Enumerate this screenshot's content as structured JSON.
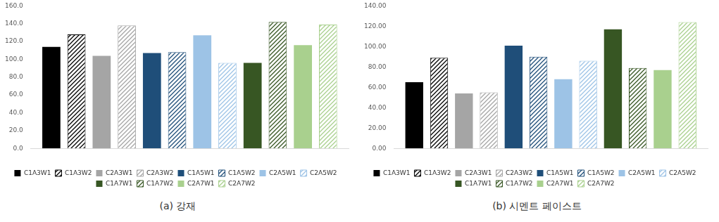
{
  "chart_data": [
    {
      "type": "bar",
      "title": "(a) 강재",
      "categories": [
        null
      ],
      "legend": "bottom",
      "grid": false,
      "ylim": [
        0,
        160
      ],
      "yticks": [
        {
          "value": 0,
          "label": "0.0"
        },
        {
          "value": 20,
          "label": "20.0"
        },
        {
          "value": 40,
          "label": "40.0"
        },
        {
          "value": 60,
          "label": "60.0"
        },
        {
          "value": 80,
          "label": "80.0"
        },
        {
          "value": 100,
          "label": "100.0"
        },
        {
          "value": 120,
          "label": "120.0"
        },
        {
          "value": 140,
          "label": "140.0"
        },
        {
          "value": 160,
          "label": "160.0"
        }
      ],
      "series": [
        {
          "name": "C1A3W1",
          "color": "#000000",
          "line_style": "solid",
          "values": [
            114
          ]
        },
        {
          "name": "C1A3W2",
          "color": "#000000",
          "line_style": "hatched",
          "values": [
            128
          ]
        },
        {
          "name": "C2A3W1",
          "color": "#a5a5a5",
          "line_style": "solid",
          "values": [
            104
          ]
        },
        {
          "name": "C2A3W2",
          "color": "#a5a5a5",
          "line_style": "hatched",
          "values": [
            138
          ]
        },
        {
          "name": "C1A5W1",
          "color": "#1f4e79",
          "line_style": "solid",
          "values": [
            107
          ]
        },
        {
          "name": "C1A5W2",
          "color": "#1f4e79",
          "line_style": "hatched",
          "values": [
            108
          ]
        },
        {
          "name": "C2A5W1",
          "color": "#9dc3e6",
          "line_style": "solid",
          "values": [
            127
          ]
        },
        {
          "name": "C2A5W2",
          "color": "#9dc3e6",
          "line_style": "hatched",
          "values": [
            96
          ]
        },
        {
          "name": "C1A7W1",
          "color": "#375623",
          "line_style": "solid",
          "values": [
            96
          ]
        },
        {
          "name": "C1A7W2",
          "color": "#375623",
          "line_style": "hatched",
          "values": [
            142
          ]
        },
        {
          "name": "C2A7W1",
          "color": "#a9d08e",
          "line_style": "solid",
          "values": [
            116
          ]
        },
        {
          "name": "C2A7W2",
          "color": "#a9d08e",
          "line_style": "hatched",
          "values": [
            139
          ]
        }
      ]
    },
    {
      "type": "bar",
      "title": "(b) 시멘트 페이스트",
      "categories": [
        null
      ],
      "legend": "bottom",
      "grid": false,
      "ylim": [
        0,
        140
      ],
      "yticks": [
        {
          "value": 0,
          "label": "0.00"
        },
        {
          "value": 20,
          "label": "20.00"
        },
        {
          "value": 40,
          "label": "40.00"
        },
        {
          "value": 60,
          "label": "60.00"
        },
        {
          "value": 80,
          "label": "80.00"
        },
        {
          "value": 100,
          "label": "100.00"
        },
        {
          "value": 120,
          "label": "120.00"
        },
        {
          "value": 140,
          "label": "140.00"
        }
      ],
      "series": [
        {
          "name": "C1A3W1",
          "color": "#000000",
          "line_style": "solid",
          "values": [
            65
          ]
        },
        {
          "name": "C1A3W2",
          "color": "#000000",
          "line_style": "hatched",
          "values": [
            89
          ]
        },
        {
          "name": "C2A3W1",
          "color": "#a5a5a5",
          "line_style": "solid",
          "values": [
            54
          ]
        },
        {
          "name": "C2A3W2",
          "color": "#a5a5a5",
          "line_style": "hatched",
          "values": [
            55
          ]
        },
        {
          "name": "C1A5W1",
          "color": "#1f4e79",
          "line_style": "solid",
          "values": [
            101
          ]
        },
        {
          "name": "C1A5W2",
          "color": "#1f4e79",
          "line_style": "hatched",
          "values": [
            90
          ]
        },
        {
          "name": "C2A5W1",
          "color": "#9dc3e6",
          "line_style": "solid",
          "values": [
            68
          ]
        },
        {
          "name": "C2A5W2",
          "color": "#9dc3e6",
          "line_style": "hatched",
          "values": [
            86
          ]
        },
        {
          "name": "C1A7W1",
          "color": "#375623",
          "line_style": "solid",
          "values": [
            117
          ]
        },
        {
          "name": "C1A7W2",
          "color": "#375623",
          "line_style": "hatched",
          "values": [
            79
          ]
        },
        {
          "name": "C2A7W1",
          "color": "#a9d08e",
          "line_style": "solid",
          "values": [
            77
          ]
        },
        {
          "name": "C2A7W2",
          "color": "#a9d08e",
          "line_style": "hatched",
          "values": [
            124
          ]
        }
      ]
    }
  ]
}
